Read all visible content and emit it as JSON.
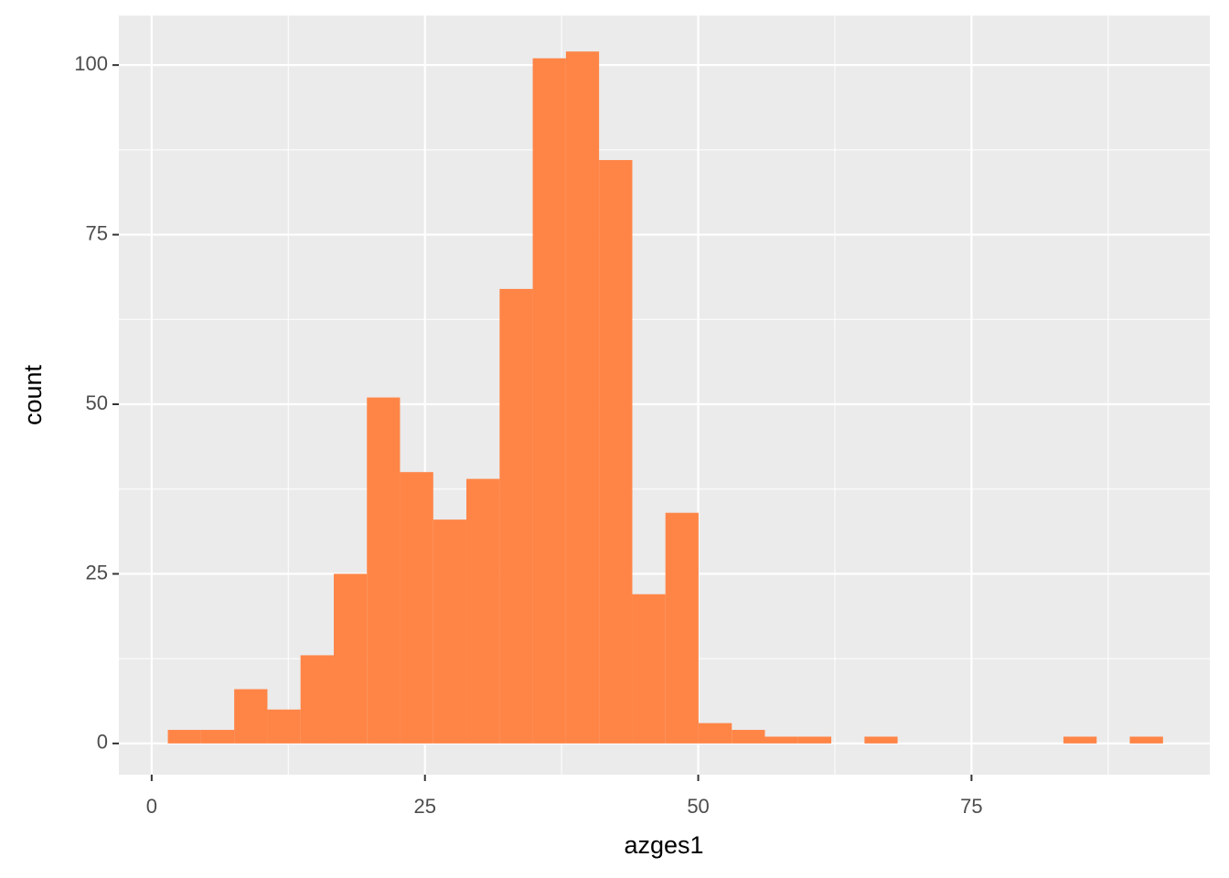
{
  "chart_data": {
    "type": "histogram",
    "x_label": "azges1",
    "y_label": "count",
    "color": "#ff8547",
    "panel_color": "#ebebeb",
    "grid": true,
    "bins": [
      1.48,
      4.52,
      7.55,
      10.59,
      13.62,
      16.66,
      19.69,
      22.72,
      25.76,
      28.79,
      31.83,
      34.86,
      37.9,
      40.93,
      43.97,
      47.0,
      50.03,
      53.07,
      56.1,
      59.14,
      62.17,
      65.21,
      68.24,
      71.28,
      74.31,
      77.34,
      80.38,
      83.41,
      86.45,
      89.48,
      92.52
    ],
    "values": [
      2,
      2,
      8,
      5,
      13,
      25,
      51,
      40,
      33,
      39,
      67,
      101,
      102,
      86,
      22,
      34,
      3,
      2,
      1,
      1,
      0,
      1,
      0,
      0,
      0,
      0,
      0,
      1,
      0,
      1
    ],
    "xlim": [
      -3.0,
      96.8
    ],
    "ylim": [
      -4.6,
      107.3
    ],
    "xticks": [
      0,
      25,
      50,
      75
    ],
    "yticks": [
      0,
      25,
      50,
      75,
      100
    ]
  }
}
